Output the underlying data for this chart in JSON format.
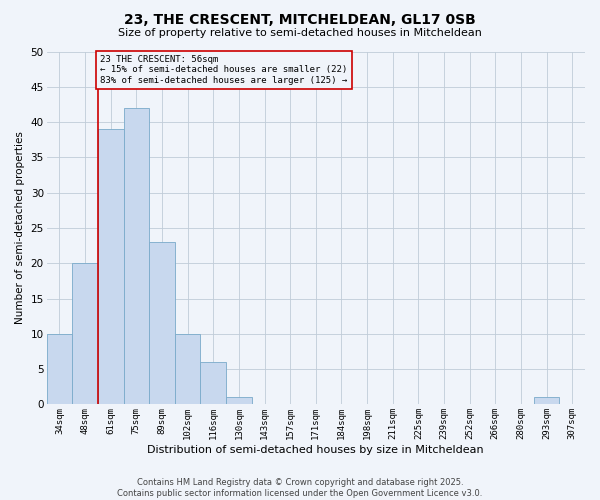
{
  "title": "23, THE CRESCENT, MITCHELDEAN, GL17 0SB",
  "subtitle": "Size of property relative to semi-detached houses in Mitcheldean",
  "xlabel": "Distribution of semi-detached houses by size in Mitcheldean",
  "ylabel": "Number of semi-detached properties",
  "categories": [
    "34sqm",
    "48sqm",
    "61sqm",
    "75sqm",
    "89sqm",
    "102sqm",
    "116sqm",
    "130sqm",
    "143sqm",
    "157sqm",
    "171sqm",
    "184sqm",
    "198sqm",
    "211sqm",
    "225sqm",
    "239sqm",
    "252sqm",
    "266sqm",
    "280sqm",
    "293sqm",
    "307sqm"
  ],
  "values": [
    10,
    20,
    39,
    42,
    23,
    10,
    6,
    1,
    0,
    0,
    0,
    0,
    0,
    0,
    0,
    0,
    0,
    0,
    0,
    1,
    0
  ],
  "bar_color": "#c8d8ee",
  "bar_edge_color": "#7aaaca",
  "vline_x": 1.5,
  "vline_color": "#cc0000",
  "annotation_title": "23 THE CRESCENT: 56sqm",
  "annotation_line1": "← 15% of semi-detached houses are smaller (22)",
  "annotation_line2": "83% of semi-detached houses are larger (125) →",
  "annotation_box_color": "#cc0000",
  "ylim": [
    0,
    50
  ],
  "yticks": [
    0,
    5,
    10,
    15,
    20,
    25,
    30,
    35,
    40,
    45,
    50
  ],
  "footer_line1": "Contains HM Land Registry data © Crown copyright and database right 2025.",
  "footer_line2": "Contains public sector information licensed under the Open Government Licence v3.0.",
  "bg_color": "#f0f4fa",
  "grid_color": "#c0ccd8",
  "title_fontsize": 10,
  "subtitle_fontsize": 8,
  "tick_fontsize": 6.5,
  "ylabel_fontsize": 7.5,
  "xlabel_fontsize": 8,
  "annotation_fontsize": 6.5,
  "footer_fontsize": 6
}
